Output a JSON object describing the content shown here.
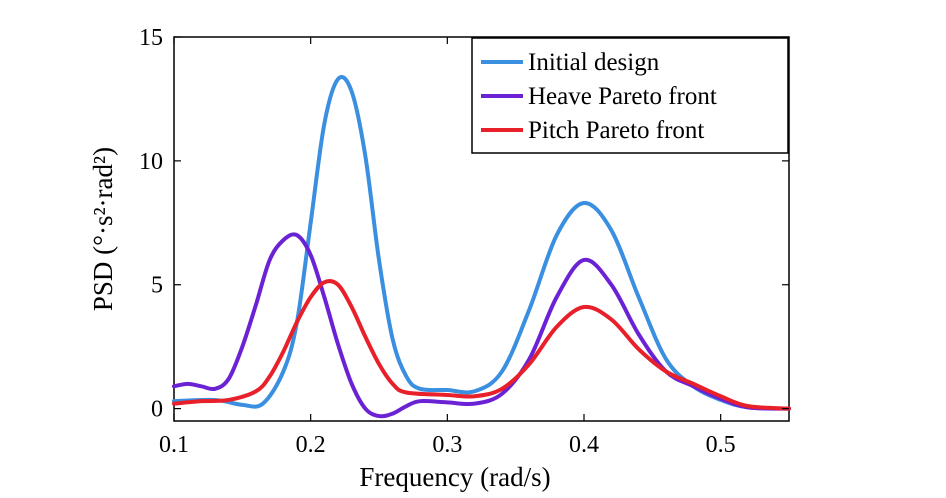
{
  "chart_data": {
    "type": "line",
    "title": "",
    "xlabel": "Frequency (rad/s)",
    "ylabel": "PSD (°·s²·rad²)",
    "xlim": [
      0.1,
      0.55
    ],
    "ylim": [
      -0.5,
      15
    ],
    "xticks": [
      0.1,
      0.2,
      0.3,
      0.4,
      0.5
    ],
    "xtick_labels": [
      "0.1",
      "0.2",
      "0.3",
      "0.4",
      "0.5"
    ],
    "yticks": [
      0,
      5,
      10,
      15
    ],
    "ytick_labels": [
      "0",
      "5",
      "10",
      "15"
    ],
    "grid": false,
    "legend_position": "top-right",
    "series": [
      {
        "name": "Initial design",
        "color": "#3a8fe0",
        "points": [
          [
            0.1,
            0.3
          ],
          [
            0.13,
            0.35
          ],
          [
            0.15,
            0.15
          ],
          [
            0.165,
            0.2
          ],
          [
            0.18,
            1.5
          ],
          [
            0.19,
            3.5
          ],
          [
            0.2,
            7.5
          ],
          [
            0.21,
            11.5
          ],
          [
            0.22,
            13.3
          ],
          [
            0.23,
            12.8
          ],
          [
            0.24,
            10.2
          ],
          [
            0.25,
            6.0
          ],
          [
            0.26,
            2.8
          ],
          [
            0.27,
            1.3
          ],
          [
            0.28,
            0.8
          ],
          [
            0.3,
            0.75
          ],
          [
            0.32,
            0.7
          ],
          [
            0.34,
            1.5
          ],
          [
            0.36,
            4.0
          ],
          [
            0.38,
            7.0
          ],
          [
            0.4,
            8.3
          ],
          [
            0.42,
            7.2
          ],
          [
            0.44,
            4.5
          ],
          [
            0.46,
            2.0
          ],
          [
            0.48,
            0.9
          ],
          [
            0.5,
            0.35
          ],
          [
            0.52,
            0.05
          ],
          [
            0.55,
            0.0
          ]
        ]
      },
      {
        "name": "Heave Pareto front",
        "color": "#6b22d4",
        "points": [
          [
            0.1,
            0.9
          ],
          [
            0.11,
            1.0
          ],
          [
            0.12,
            0.9
          ],
          [
            0.13,
            0.8
          ],
          [
            0.14,
            1.2
          ],
          [
            0.15,
            2.5
          ],
          [
            0.16,
            4.2
          ],
          [
            0.17,
            6.0
          ],
          [
            0.18,
            6.8
          ],
          [
            0.19,
            7.0
          ],
          [
            0.2,
            6.2
          ],
          [
            0.21,
            4.5
          ],
          [
            0.22,
            2.6
          ],
          [
            0.23,
            1.0
          ],
          [
            0.24,
            0.0
          ],
          [
            0.25,
            -0.3
          ],
          [
            0.26,
            -0.2
          ],
          [
            0.27,
            0.1
          ],
          [
            0.28,
            0.3
          ],
          [
            0.3,
            0.25
          ],
          [
            0.32,
            0.2
          ],
          [
            0.34,
            0.6
          ],
          [
            0.36,
            2.0
          ],
          [
            0.38,
            4.5
          ],
          [
            0.4,
            6.0
          ],
          [
            0.42,
            5.0
          ],
          [
            0.44,
            3.0
          ],
          [
            0.46,
            1.5
          ],
          [
            0.48,
            0.9
          ],
          [
            0.5,
            0.4
          ],
          [
            0.52,
            0.05
          ],
          [
            0.55,
            0.0
          ]
        ]
      },
      {
        "name": "Pitch Pareto front",
        "color": "#e8202a",
        "points": [
          [
            0.1,
            0.2
          ],
          [
            0.12,
            0.3
          ],
          [
            0.14,
            0.35
          ],
          [
            0.16,
            0.7
          ],
          [
            0.17,
            1.3
          ],
          [
            0.18,
            2.3
          ],
          [
            0.19,
            3.5
          ],
          [
            0.2,
            4.5
          ],
          [
            0.21,
            5.1
          ],
          [
            0.22,
            5.0
          ],
          [
            0.23,
            4.1
          ],
          [
            0.24,
            2.9
          ],
          [
            0.25,
            1.8
          ],
          [
            0.26,
            1.0
          ],
          [
            0.27,
            0.65
          ],
          [
            0.3,
            0.55
          ],
          [
            0.32,
            0.5
          ],
          [
            0.34,
            0.8
          ],
          [
            0.36,
            1.8
          ],
          [
            0.38,
            3.3
          ],
          [
            0.4,
            4.1
          ],
          [
            0.42,
            3.6
          ],
          [
            0.44,
            2.4
          ],
          [
            0.46,
            1.5
          ],
          [
            0.48,
            1.0
          ],
          [
            0.5,
            0.5
          ],
          [
            0.52,
            0.1
          ],
          [
            0.55,
            0.0
          ]
        ]
      }
    ]
  }
}
